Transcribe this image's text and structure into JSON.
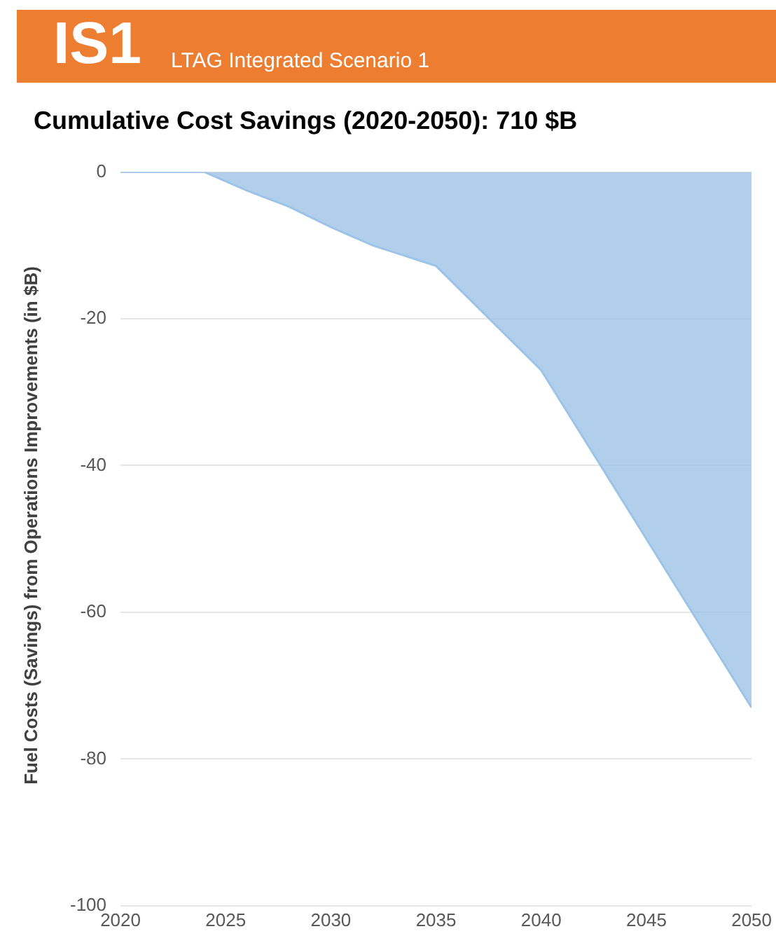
{
  "chart_data": {
    "type": "area",
    "title": "Cumulative Cost Savings (2020-2050): 710 $B",
    "annotations": [
      "IS1",
      "LTAG Integrated Scenario 1"
    ],
    "ylabel": "Fuel Costs (Savings) from Operations Improvements (in $B)",
    "x": [
      2020,
      2024,
      2026,
      2028,
      2030,
      2032,
      2035,
      2040,
      2050
    ],
    "series": [
      {
        "color": "#9dc3e6",
        "values": [
          0,
          0,
          -2.5,
          -4.7,
          -7.5,
          -10,
          -12.8,
          -27,
          -73
        ]
      }
    ],
    "xlim": [
      2020,
      2050
    ],
    "xticks": [
      2020,
      2025,
      2030,
      2035,
      2040,
      2045,
      2050
    ],
    "ylim": [
      -100,
      0
    ],
    "yticks": [
      -100,
      -80,
      -60,
      -40,
      -20,
      0
    ],
    "grid": "y",
    "legend": false
  }
}
